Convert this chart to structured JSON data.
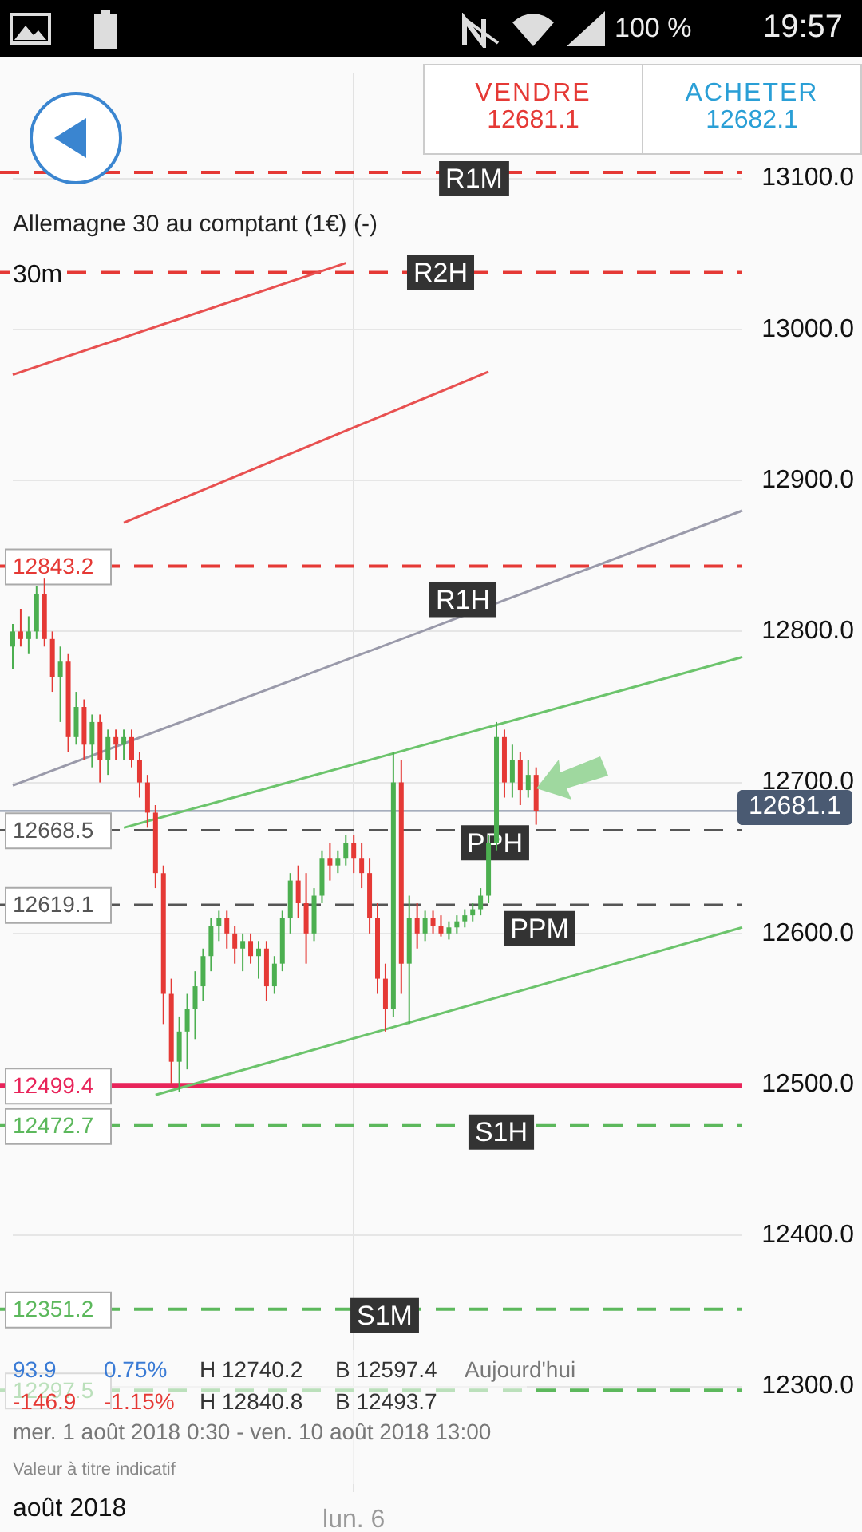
{
  "chart_data": {
    "type": "candlestick",
    "title": "Allemagne 30 au comptant (1€) (-)",
    "categories": [
      null,
      null,
      null,
      null,
      null,
      null,
      null,
      null,
      null,
      null,
      null,
      null,
      null,
      null,
      null,
      null,
      null,
      null,
      null,
      null,
      null,
      null,
      null,
      null,
      null,
      null,
      null,
      null,
      null,
      null,
      null,
      null,
      null,
      null,
      null,
      null,
      null,
      null,
      null,
      null,
      null,
      null,
      null,
      "lun. 6",
      null,
      null,
      null,
      null,
      null,
      null,
      null,
      null,
      null,
      null,
      null,
      null,
      null,
      null,
      null,
      null,
      null,
      null,
      null,
      null,
      null,
      null,
      null,
      null,
      null,
      null,
      null,
      null,
      null,
      null,
      null,
      null,
      null,
      null,
      null,
      null,
      null,
      null,
      null,
      null,
      null,
      null,
      null,
      null,
      null,
      null,
      null,
      null,
      null
    ],
    "ohlc": [
      [
        12790,
        12805,
        12775,
        12800
      ],
      [
        12800,
        12815,
        12790,
        12795
      ],
      [
        12795,
        12810,
        12785,
        12800
      ],
      [
        12800,
        12830,
        12795,
        12825
      ],
      [
        12825,
        12835,
        12790,
        12795
      ],
      [
        12795,
        12800,
        12760,
        12770
      ],
      [
        12770,
        12790,
        12740,
        12780
      ],
      [
        12780,
        12785,
        12720,
        12730
      ],
      [
        12730,
        12760,
        12725,
        12750
      ],
      [
        12750,
        12755,
        12715,
        12725
      ],
      [
        12725,
        12745,
        12710,
        12740
      ],
      [
        12740,
        12745,
        12700,
        12715
      ],
      [
        12715,
        12735,
        12705,
        12730
      ],
      [
        12730,
        12735,
        12715,
        12725
      ],
      [
        12725,
        12735,
        12715,
        12730
      ],
      [
        12730,
        12735,
        12710,
        12715
      ],
      [
        12715,
        12720,
        12690,
        12700
      ],
      [
        12700,
        12705,
        12670,
        12680
      ],
      [
        12680,
        12685,
        12630,
        12640
      ],
      [
        12640,
        12645,
        12540,
        12560
      ],
      [
        12560,
        12570,
        12500,
        12515
      ],
      [
        12515,
        12545,
        12495,
        12535
      ],
      [
        12535,
        12560,
        12510,
        12550
      ],
      [
        12550,
        12575,
        12530,
        12565
      ],
      [
        12565,
        12590,
        12555,
        12585
      ],
      [
        12585,
        12610,
        12575,
        12605
      ],
      [
        12605,
        12615,
        12595,
        12610
      ],
      [
        12610,
        12615,
        12590,
        12600
      ],
      [
        12600,
        12605,
        12580,
        12590
      ],
      [
        12590,
        12600,
        12575,
        12595
      ],
      [
        12595,
        12600,
        12580,
        12585
      ],
      [
        12585,
        12595,
        12570,
        12590
      ],
      [
        12590,
        12595,
        12555,
        12565
      ],
      [
        12565,
        12585,
        12560,
        12580
      ],
      [
        12580,
        12615,
        12575,
        12610
      ],
      [
        12610,
        12640,
        12600,
        12635
      ],
      [
        12635,
        12645,
        12610,
        12620
      ],
      [
        12620,
        12640,
        12580,
        12600
      ],
      [
        12600,
        12630,
        12595,
        12625
      ],
      [
        12625,
        12655,
        12620,
        12650
      ],
      [
        12650,
        12660,
        12635,
        12645
      ],
      [
        12645,
        12655,
        12640,
        12650
      ],
      [
        12650,
        12665,
        12645,
        12660
      ],
      [
        12660,
        12665,
        12640,
        12650
      ],
      [
        12650,
        12660,
        12630,
        12640
      ],
      [
        12640,
        12650,
        12600,
        12610
      ],
      [
        12610,
        12620,
        12560,
        12570
      ],
      [
        12570,
        12580,
        12535,
        12550
      ],
      [
        12550,
        12720,
        12545,
        12700
      ],
      [
        12700,
        12715,
        12560,
        12580
      ],
      [
        12580,
        12625,
        12540,
        12610
      ],
      [
        12610,
        12620,
        12590,
        12600
      ],
      [
        12600,
        12615,
        12595,
        12610
      ],
      [
        12610,
        12615,
        12600,
        12605
      ],
      [
        12605,
        12612,
        12598,
        12600
      ],
      [
        12600,
        12608,
        12596,
        12604
      ],
      [
        12604,
        12612,
        12600,
        12608
      ],
      [
        12608,
        12616,
        12604,
        12612
      ],
      [
        12612,
        12620,
        12608,
        12616
      ],
      [
        12616,
        12630,
        12612,
        12625
      ],
      [
        12625,
        12665,
        12620,
        12660
      ],
      [
        12660,
        12740,
        12655,
        12730
      ],
      [
        12730,
        12735,
        12690,
        12700
      ],
      [
        12700,
        12725,
        12690,
        12715
      ],
      [
        12715,
        12720,
        12685,
        12695
      ],
      [
        12695,
        12715,
        12690,
        12705
      ],
      [
        12705,
        12710,
        12672,
        12681.1
      ],
      null,
      null,
      null,
      null,
      null,
      null,
      null,
      null,
      null,
      null,
      null,
      null,
      null,
      null,
      null,
      null,
      null,
      null,
      null,
      null,
      null,
      null,
      null,
      null,
      null,
      null
    ],
    "series": [
      {
        "type": "line",
        "color": "#9a9aaa",
        "values": [
          12698,
          null,
          null,
          null,
          null,
          null,
          null,
          null,
          null,
          null,
          null,
          null,
          null,
          null,
          null,
          null,
          null,
          null,
          null,
          null,
          null,
          null,
          null,
          null,
          null,
          null,
          null,
          null,
          null,
          null,
          null,
          null,
          null,
          null,
          null,
          null,
          null,
          null,
          null,
          null,
          null,
          null,
          null,
          null,
          null,
          null,
          null,
          null,
          null,
          null,
          null,
          null,
          null,
          null,
          null,
          null,
          null,
          null,
          null,
          null,
          null,
          null,
          null,
          null,
          null,
          null,
          null,
          null,
          null,
          null,
          null,
          null,
          null,
          null,
          null,
          null,
          null,
          null,
          null,
          null,
          null,
          null,
          null,
          null,
          null,
          null,
          null,
          null,
          null,
          null,
          null,
          null,
          12880
        ]
      },
      {
        "type": "line",
        "color": "#e85050",
        "values": [
          12970,
          null,
          null,
          null,
          null,
          null,
          null,
          null,
          null,
          null,
          null,
          null,
          null,
          null,
          null,
          null,
          null,
          null,
          null,
          null,
          null,
          null,
          null,
          null,
          null,
          null,
          null,
          null,
          null,
          null,
          null,
          null,
          null,
          null,
          null,
          null,
          null,
          null,
          null,
          null,
          null,
          null,
          13044,
          null,
          null,
          null,
          null,
          null,
          null,
          null,
          null,
          null,
          null,
          null,
          null,
          null,
          null,
          null,
          null,
          null,
          null,
          null,
          null,
          null,
          null,
          null,
          null,
          null,
          null,
          null,
          null,
          null,
          null,
          null,
          null,
          null,
          null,
          null,
          null,
          null,
          null,
          null,
          null,
          null,
          null,
          null,
          null,
          null,
          null,
          null,
          null,
          null,
          null
        ]
      },
      {
        "type": "line",
        "color": "#e85050",
        "values": [
          null,
          null,
          null,
          null,
          null,
          null,
          null,
          null,
          null,
          null,
          null,
          null,
          null,
          null,
          12872,
          null,
          null,
          null,
          null,
          null,
          null,
          null,
          null,
          null,
          null,
          null,
          null,
          null,
          null,
          null,
          null,
          null,
          null,
          null,
          null,
          null,
          null,
          null,
          null,
          null,
          null,
          null,
          null,
          null,
          null,
          null,
          null,
          null,
          null,
          null,
          null,
          null,
          null,
          null,
          null,
          null,
          null,
          null,
          null,
          null,
          12972,
          null,
          null,
          null,
          null,
          null,
          null,
          null,
          null,
          null,
          null,
          null,
          null,
          null,
          null,
          null,
          null,
          null,
          null,
          null,
          null,
          null,
          null,
          null,
          null,
          null,
          null,
          null,
          null,
          null,
          null,
          null,
          null
        ]
      },
      {
        "type": "line",
        "color": "#6cc46c",
        "values": [
          null,
          null,
          null,
          null,
          null,
          null,
          null,
          null,
          null,
          null,
          null,
          null,
          null,
          null,
          12670,
          null,
          null,
          null,
          null,
          null,
          null,
          null,
          null,
          null,
          null,
          null,
          null,
          null,
          null,
          null,
          null,
          null,
          null,
          null,
          null,
          null,
          null,
          null,
          null,
          null,
          null,
          null,
          null,
          null,
          null,
          null,
          null,
          null,
          null,
          null,
          null,
          null,
          null,
          null,
          null,
          null,
          null,
          null,
          null,
          null,
          null,
          null,
          null,
          null,
          null,
          null,
          null,
          null,
          null,
          null,
          null,
          null,
          null,
          null,
          null,
          null,
          null,
          null,
          null,
          null,
          null,
          null,
          null,
          null,
          null,
          null,
          null,
          null,
          null,
          null,
          null,
          null,
          12783
        ]
      },
      {
        "type": "line",
        "color": "#6cc46c",
        "values": [
          null,
          null,
          null,
          null,
          null,
          null,
          null,
          null,
          null,
          null,
          null,
          null,
          null,
          null,
          null,
          null,
          null,
          null,
          12493,
          null,
          null,
          null,
          null,
          null,
          null,
          null,
          null,
          null,
          null,
          null,
          null,
          null,
          null,
          null,
          null,
          null,
          null,
          null,
          null,
          null,
          null,
          null,
          null,
          null,
          null,
          null,
          null,
          null,
          null,
          null,
          null,
          null,
          null,
          null,
          null,
          null,
          null,
          null,
          null,
          null,
          null,
          null,
          null,
          null,
          null,
          null,
          null,
          null,
          null,
          null,
          null,
          null,
          null,
          null,
          null,
          null,
          null,
          null,
          null,
          null,
          null,
          null,
          null,
          null,
          null,
          null,
          null,
          null,
          null,
          null,
          null,
          null,
          12604
        ]
      }
    ],
    "ylim": [
      12230,
      13170
    ],
    "yticks": [
      {
        "value": 12300,
        "label": "12300.0"
      },
      {
        "value": 12400,
        "label": "12400.0"
      },
      {
        "value": 12500,
        "label": "12500.0"
      },
      {
        "value": 12600,
        "label": "12600.0"
      },
      {
        "value": 12700,
        "label": "12700.0"
      },
      {
        "value": 12800,
        "label": "12800.0"
      },
      {
        "value": 12900,
        "label": "12900.0"
      },
      {
        "value": 13000,
        "label": "13000.0"
      },
      {
        "value": 13100,
        "label": "13100.0"
      }
    ],
    "grid": true,
    "legend": false,
    "ref_lines": [
      {
        "axis": "y",
        "value": 13104,
        "label": null,
        "color": "#e53935",
        "line_style": "dashed"
      },
      {
        "axis": "y",
        "value": 13037.7,
        "label": null,
        "color": "#e53935",
        "line_style": "dashed"
      },
      {
        "axis": "y",
        "value": 12843.2,
        "label": "12843.2",
        "color": "#e53935",
        "line_style": "dashed"
      },
      {
        "axis": "y",
        "value": 12668.5,
        "label": "12668.5",
        "color": "#555555",
        "line_style": "dashed"
      },
      {
        "axis": "y",
        "value": 12619.1,
        "label": "12619.1",
        "color": "#555555",
        "line_style": "dashed"
      },
      {
        "axis": "y",
        "value": 12681.1,
        "label": null,
        "color": "#8a94a8",
        "line_style": "solid"
      },
      {
        "axis": "y",
        "value": 12499.4,
        "label": "12499.4",
        "color": "#e8245a",
        "line_style": "solid"
      },
      {
        "axis": "y",
        "value": 12472.7,
        "label": "12472.7",
        "color": "#5cb85c",
        "line_style": "dashed"
      },
      {
        "axis": "y",
        "value": 12351.2,
        "label": "12351.2",
        "color": "#5cb85c",
        "line_style": "dashed"
      },
      {
        "axis": "y",
        "value": 12297.5,
        "label": "12297.5",
        "color": "#5cb85c",
        "line_style": "dashed"
      }
    ],
    "annotations": [
      "VENDRE",
      "12681.1",
      "ACHETER",
      "12682.1",
      "30m",
      "93.9",
      "0.75%",
      "H 12740.2",
      "B 12597.4",
      "Aujourd'hui",
      "-146.9",
      "-1.15%",
      "H 12840.8",
      "B 12493.7",
      "mer. 1 août 2018 0:30 - ven. 10 août 2018 13:00",
      "Valeur à titre indicatif",
      "août 2018",
      "100 %",
      "19:57",
      "12681.1",
      {
        "text": "R1M",
        "y": 13104
      },
      {
        "text": "R2H",
        "y": 13037.7
      },
      {
        "text": "R1H",
        "y": 12843.2
      },
      {
        "text": "PPH",
        "y": 12668.5
      },
      {
        "text": "PPM",
        "y": 12619.1
      },
      {
        "text": "S1H",
        "y": 12472.7
      },
      {
        "text": "S1M",
        "y": 12351.2
      }
    ]
  }
}
